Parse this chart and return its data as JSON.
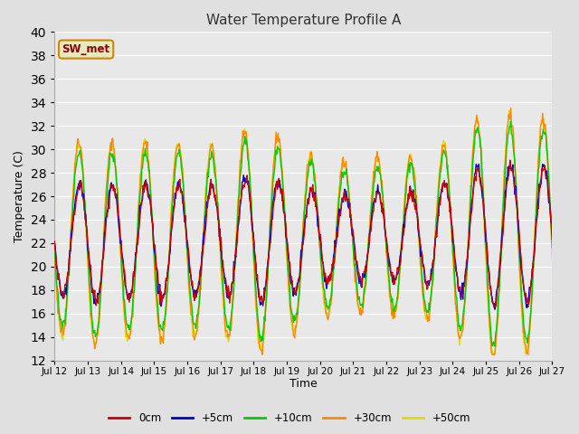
{
  "title": "Water Temperature Profile A",
  "xlabel": "Time",
  "ylabel": "Temperature (C)",
  "ylim": [
    12,
    40
  ],
  "yticks": [
    12,
    14,
    16,
    18,
    20,
    22,
    24,
    26,
    28,
    30,
    32,
    34,
    36,
    38,
    40
  ],
  "bg_color": "#e0e0e0",
  "plot_bg": "#e8e8e8",
  "grid_color": "#ffffff",
  "colors": {
    "0cm": "#cc0000",
    "+5cm": "#0000cc",
    "+10cm": "#00cc00",
    "+30cm": "#ff8800",
    "+50cm": "#dddd00"
  },
  "legend_box_edgecolor": "#cc8800",
  "legend_box_fill": "#e8e8c0",
  "legend_label": "SW_met",
  "n_points": 720,
  "x_start": 12.0,
  "x_end": 27.0,
  "x_ticks": [
    12,
    13,
    14,
    15,
    16,
    17,
    18,
    19,
    20,
    21,
    22,
    23,
    24,
    25,
    26,
    27
  ],
  "x_tick_labels": [
    "Jul 12",
    "Jul 13",
    "Jul 14",
    "Jul 15",
    "Jul 16",
    "Jul 17",
    "Jul 18",
    "Jul 19",
    "Jul 20",
    "Jul 21",
    "Jul 22",
    "Jul 23",
    "Jul 24",
    "Jul 25",
    "Jul 26",
    "Jul 27"
  ]
}
